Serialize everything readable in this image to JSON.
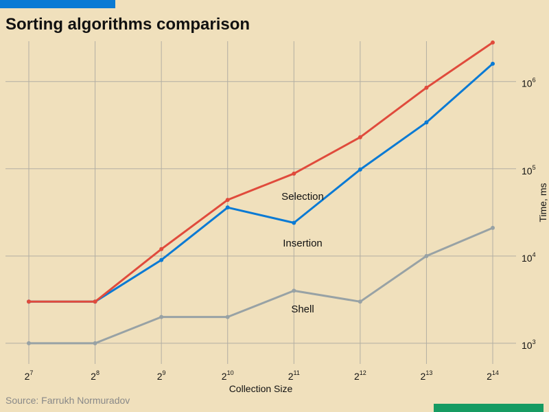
{
  "title": "Sorting algorithms comparison",
  "source": "Source: Farrukh Normuradov",
  "chart_data": {
    "type": "line",
    "x_base": "2",
    "x_exponents": [
      7,
      8,
      9,
      10,
      11,
      12,
      13,
      14
    ],
    "xlabel": "Collection Size",
    "ylabel": "Time, ms",
    "y_scale": "log",
    "y_base": "10",
    "y_tick_exponents": [
      3,
      4,
      5,
      6
    ],
    "ylim": [
      720,
      2900000
    ],
    "grid": true,
    "series": [
      {
        "name": "Selection",
        "color": "#E04B3C",
        "values": [
          3000,
          3000,
          12000,
          44000,
          88000,
          230000,
          850000,
          2800000
        ]
      },
      {
        "name": "Insertion",
        "color": "#0A7AD4",
        "values": [
          3000,
          3000,
          9000,
          36000,
          24000,
          98000,
          340000,
          1600000
        ]
      },
      {
        "name": "Shell",
        "color": "#98A2A5",
        "values": [
          1000,
          1000,
          2000,
          2000,
          4000,
          3000,
          10000,
          21000
        ]
      }
    ]
  }
}
